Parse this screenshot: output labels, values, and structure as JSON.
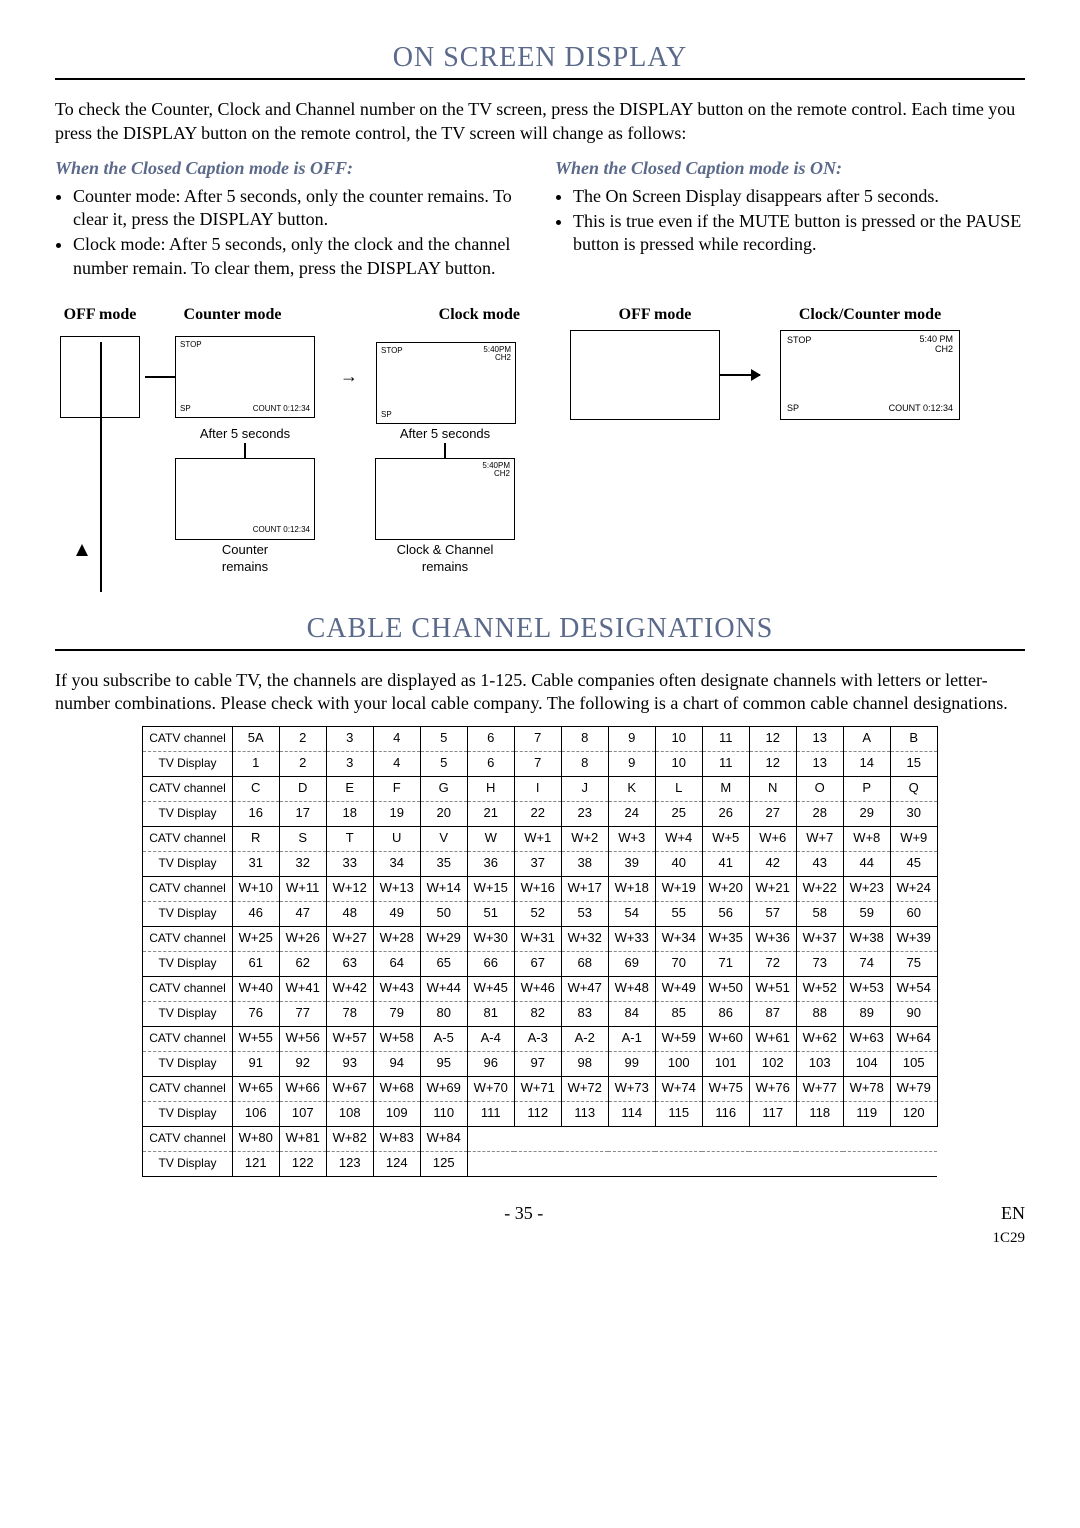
{
  "section1": {
    "title": "ON SCREEN DISPLAY",
    "intro": "To check the Counter, Clock and Channel number on the TV screen, press the DISPLAY button on the remote control. Each time you press the DISPLAY button on the remote control, the TV screen will change as follows:",
    "left": {
      "heading": "When the Closed Caption mode is OFF:",
      "bullets": [
        "Counter mode: After 5 seconds, only the counter remains. To clear it, press the DISPLAY button.",
        "Clock mode: After 5 seconds, only the clock and the channel number remain. To clear them, press the DISPLAY button."
      ]
    },
    "right": {
      "heading": "When the Closed Caption mode is ON:",
      "bullets": [
        "The On Screen Display disappears after 5 seconds.",
        "This is true even if the MUTE button is pressed or the PAUSE button is pressed while recording."
      ]
    },
    "diagram_left": {
      "labels": {
        "off": "OFF mode",
        "counter": "Counter mode",
        "clock": "Clock mode"
      },
      "screen_text": {
        "stop": "STOP",
        "time": "5:40PM",
        "ch": "CH2",
        "sp": "SP",
        "count": "COUNT 0:12:34"
      },
      "after5": "After 5 seconds",
      "counter_remains": "Counter\nremains",
      "clock_remains": "Clock & Channel\nremains"
    },
    "diagram_right": {
      "labels": {
        "off": "OFF mode",
        "clockcounter": "Clock/Counter mode"
      },
      "screen_text": {
        "stop": "STOP",
        "time": "5:40 PM",
        "ch": "CH2",
        "sp": "SP",
        "count": "COUNT 0:12:34"
      }
    }
  },
  "section2": {
    "title": "CABLE CHANNEL DESIGNATIONS",
    "intro": "If you subscribe to cable TV, the channels are displayed as 1-125. Cable companies often designate channels with letters or letter-number combinations. Please check with your local cable company. The following is a chart of common cable channel designations.",
    "row_labels": {
      "catv": "CATV channel",
      "tv": "TV Display"
    },
    "groups": [
      {
        "catv": [
          "5A",
          "2",
          "3",
          "4",
          "5",
          "6",
          "7",
          "8",
          "9",
          "10",
          "11",
          "12",
          "13",
          "A",
          "B"
        ],
        "tv": [
          "1",
          "2",
          "3",
          "4",
          "5",
          "6",
          "7",
          "8",
          "9",
          "10",
          "11",
          "12",
          "13",
          "14",
          "15"
        ]
      },
      {
        "catv": [
          "C",
          "D",
          "E",
          "F",
          "G",
          "H",
          "I",
          "J",
          "K",
          "L",
          "M",
          "N",
          "O",
          "P",
          "Q"
        ],
        "tv": [
          "16",
          "17",
          "18",
          "19",
          "20",
          "21",
          "22",
          "23",
          "24",
          "25",
          "26",
          "27",
          "28",
          "29",
          "30"
        ]
      },
      {
        "catv": [
          "R",
          "S",
          "T",
          "U",
          "V",
          "W",
          "W+1",
          "W+2",
          "W+3",
          "W+4",
          "W+5",
          "W+6",
          "W+7",
          "W+8",
          "W+9"
        ],
        "tv": [
          "31",
          "32",
          "33",
          "34",
          "35",
          "36",
          "37",
          "38",
          "39",
          "40",
          "41",
          "42",
          "43",
          "44",
          "45"
        ]
      },
      {
        "catv": [
          "W+10",
          "W+11",
          "W+12",
          "W+13",
          "W+14",
          "W+15",
          "W+16",
          "W+17",
          "W+18",
          "W+19",
          "W+20",
          "W+21",
          "W+22",
          "W+23",
          "W+24"
        ],
        "tv": [
          "46",
          "47",
          "48",
          "49",
          "50",
          "51",
          "52",
          "53",
          "54",
          "55",
          "56",
          "57",
          "58",
          "59",
          "60"
        ]
      },
      {
        "catv": [
          "W+25",
          "W+26",
          "W+27",
          "W+28",
          "W+29",
          "W+30",
          "W+31",
          "W+32",
          "W+33",
          "W+34",
          "W+35",
          "W+36",
          "W+37",
          "W+38",
          "W+39"
        ],
        "tv": [
          "61",
          "62",
          "63",
          "64",
          "65",
          "66",
          "67",
          "68",
          "69",
          "70",
          "71",
          "72",
          "73",
          "74",
          "75"
        ]
      },
      {
        "catv": [
          "W+40",
          "W+41",
          "W+42",
          "W+43",
          "W+44",
          "W+45",
          "W+46",
          "W+47",
          "W+48",
          "W+49",
          "W+50",
          "W+51",
          "W+52",
          "W+53",
          "W+54"
        ],
        "tv": [
          "76",
          "77",
          "78",
          "79",
          "80",
          "81",
          "82",
          "83",
          "84",
          "85",
          "86",
          "87",
          "88",
          "89",
          "90"
        ]
      },
      {
        "catv": [
          "W+55",
          "W+56",
          "W+57",
          "W+58",
          "A-5",
          "A-4",
          "A-3",
          "A-2",
          "A-1",
          "W+59",
          "W+60",
          "W+61",
          "W+62",
          "W+63",
          "W+64"
        ],
        "tv": [
          "91",
          "92",
          "93",
          "94",
          "95",
          "96",
          "97",
          "98",
          "99",
          "100",
          "101",
          "102",
          "103",
          "104",
          "105"
        ]
      },
      {
        "catv": [
          "W+65",
          "W+66",
          "W+67",
          "W+68",
          "W+69",
          "W+70",
          "W+71",
          "W+72",
          "W+73",
          "W+74",
          "W+75",
          "W+76",
          "W+77",
          "W+78",
          "W+79"
        ],
        "tv": [
          "106",
          "107",
          "108",
          "109",
          "110",
          "111",
          "112",
          "113",
          "114",
          "115",
          "116",
          "117",
          "118",
          "119",
          "120"
        ]
      },
      {
        "catv": [
          "W+80",
          "W+81",
          "W+82",
          "W+83",
          "W+84"
        ],
        "tv": [
          "121",
          "122",
          "123",
          "124",
          "125"
        ]
      }
    ]
  },
  "footer": {
    "page": "- 35 -",
    "lang": "EN",
    "code": "1C29"
  }
}
